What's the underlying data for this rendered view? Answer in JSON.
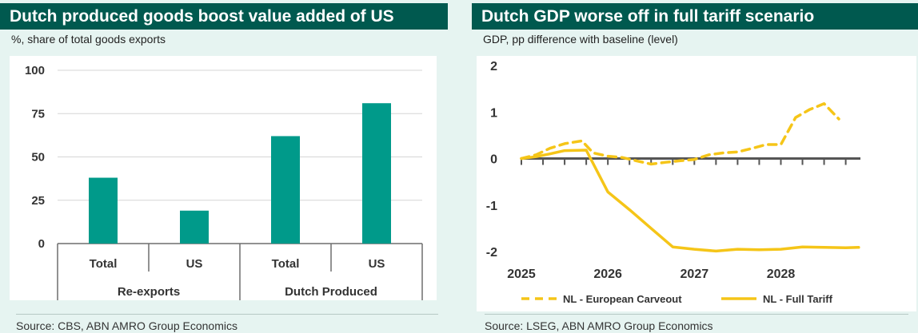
{
  "left": {
    "title": "Dutch produced goods boost value added of US",
    "subtitle": "%, share of total goods exports",
    "source": "Source: CBS, ABN AMRO Group Economics",
    "chart_data": {
      "type": "bar",
      "categories": [
        "Total",
        "US",
        "Total",
        "US"
      ],
      "groups": [
        {
          "label": "Re-exports",
          "categories": [
            0,
            1
          ]
        },
        {
          "label": "Dutch Produced",
          "categories": [
            2,
            3
          ]
        }
      ],
      "values": [
        38,
        19,
        62,
        81
      ],
      "ylim": [
        0,
        100
      ],
      "yticks": [
        0,
        25,
        50,
        75,
        100
      ],
      "grid": true,
      "color": "#009a8a"
    }
  },
  "right": {
    "title": "Dutch GDP worse off in full tariff scenario",
    "subtitle": "GDP, pp difference with baseline (level)",
    "source": "Source: LSEG, ABN AMRO Group Economics",
    "chart_data": {
      "type": "line",
      "xlim": [
        2025,
        2028.92
      ],
      "xticks": [
        2025,
        2026,
        2027,
        2028
      ],
      "ylim": [
        -2,
        2
      ],
      "yticks": [
        2,
        1,
        0,
        -1,
        -2
      ],
      "legend_position": "bottom",
      "series": [
        {
          "name": "NL - European Carveout",
          "style": "dashed",
          "color": "#f5c518",
          "points": [
            [
              2025,
              0
            ],
            [
              2025.17,
              0.08
            ],
            [
              2025.33,
              0.22
            ],
            [
              2025.5,
              0.32
            ],
            [
              2025.7,
              0.38
            ],
            [
              2025.83,
              0.12
            ],
            [
              2026.0,
              0.05
            ],
            [
              2026.17,
              0.02
            ],
            [
              2026.33,
              -0.05
            ],
            [
              2026.5,
              -0.12
            ],
            [
              2026.67,
              -0.08
            ],
            [
              2026.83,
              -0.05
            ],
            [
              2027.0,
              -0.02
            ],
            [
              2027.17,
              0.08
            ],
            [
              2027.33,
              0.12
            ],
            [
              2027.5,
              0.14
            ],
            [
              2027.67,
              0.22
            ],
            [
              2027.83,
              0.3
            ],
            [
              2028.0,
              0.3
            ],
            [
              2028.17,
              0.88
            ],
            [
              2028.33,
              1.05
            ],
            [
              2028.5,
              1.18
            ],
            [
              2028.67,
              0.85
            ]
          ]
        },
        {
          "name": "NL - Full Tariff",
          "style": "solid",
          "color": "#f5c518",
          "points": [
            [
              2025,
              0
            ],
            [
              2025.17,
              0.04
            ],
            [
              2025.33,
              0.1
            ],
            [
              2025.5,
              0.17
            ],
            [
              2025.75,
              0.18
            ],
            [
              2026.0,
              -0.72
            ],
            [
              2026.25,
              -1.1
            ],
            [
              2026.5,
              -1.5
            ],
            [
              2026.75,
              -1.9
            ],
            [
              2027.0,
              -1.95
            ],
            [
              2027.25,
              -1.99
            ],
            [
              2027.5,
              -1.95
            ],
            [
              2027.75,
              -1.96
            ],
            [
              2028.0,
              -1.95
            ],
            [
              2028.25,
              -1.9
            ],
            [
              2028.5,
              -1.91
            ],
            [
              2028.75,
              -1.92
            ],
            [
              2028.9,
              -1.91
            ]
          ]
        }
      ]
    }
  }
}
